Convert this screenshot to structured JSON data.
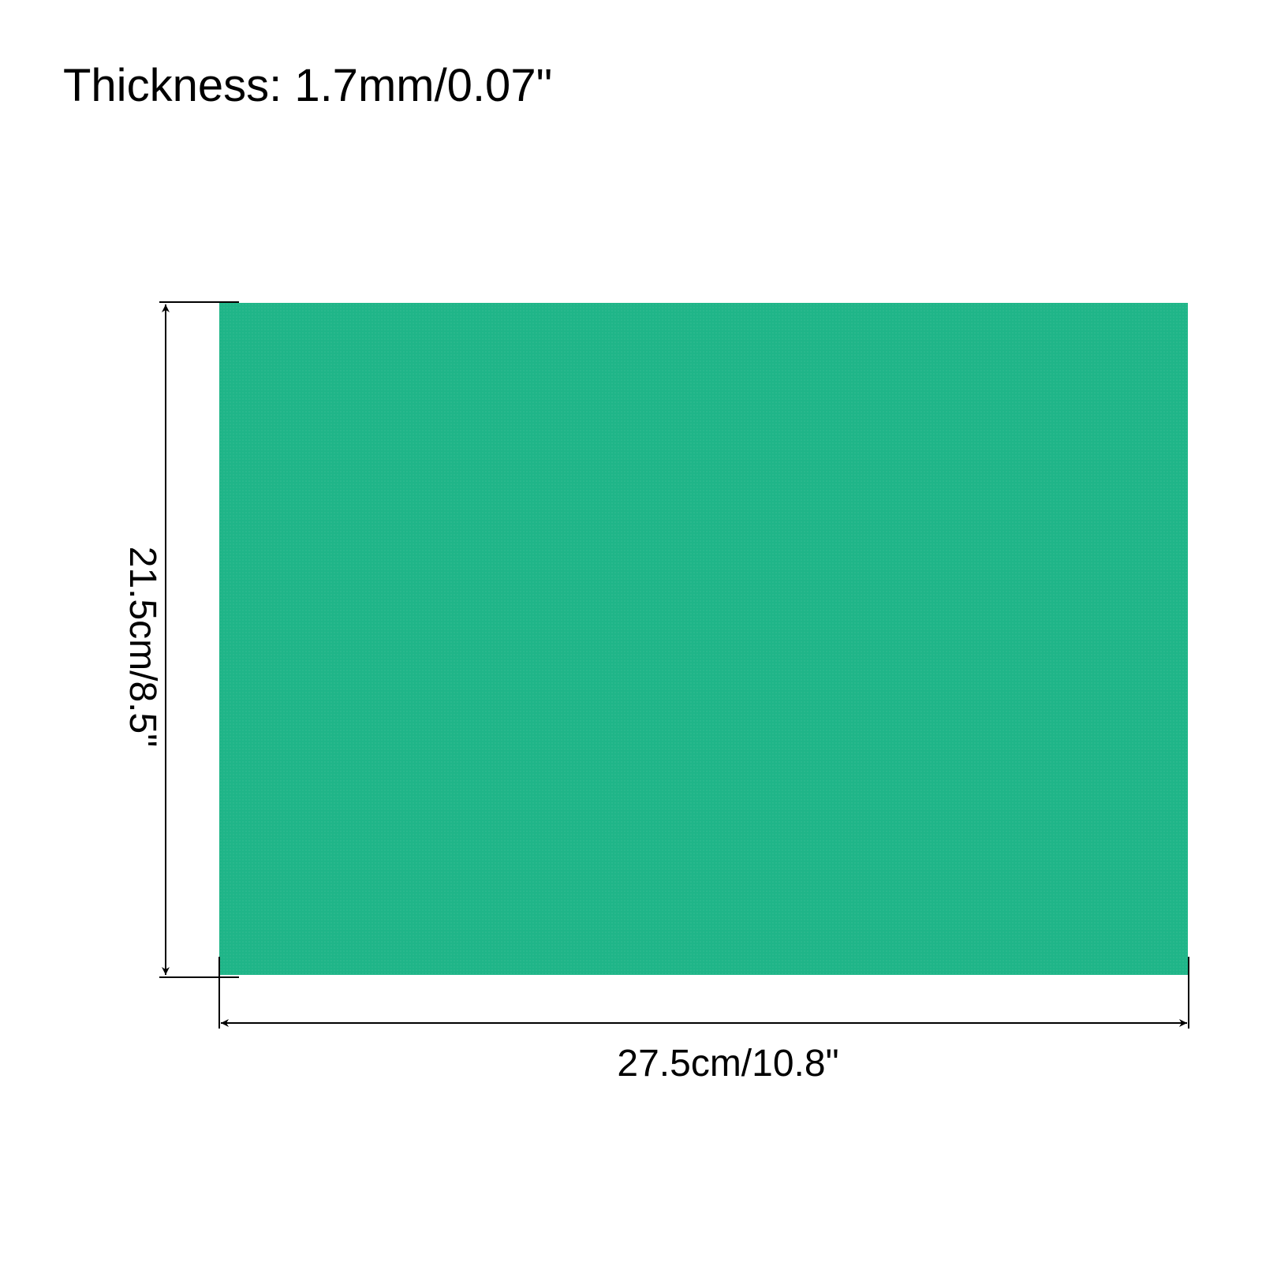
{
  "title": "Thickness: 1.7mm/0.07\"",
  "dimensions": {
    "width_label": "27.5cm/10.8\"",
    "height_label": "21.5cm/8.5\""
  },
  "colors": {
    "sheet": "#1fb588",
    "lines": "#000000"
  }
}
